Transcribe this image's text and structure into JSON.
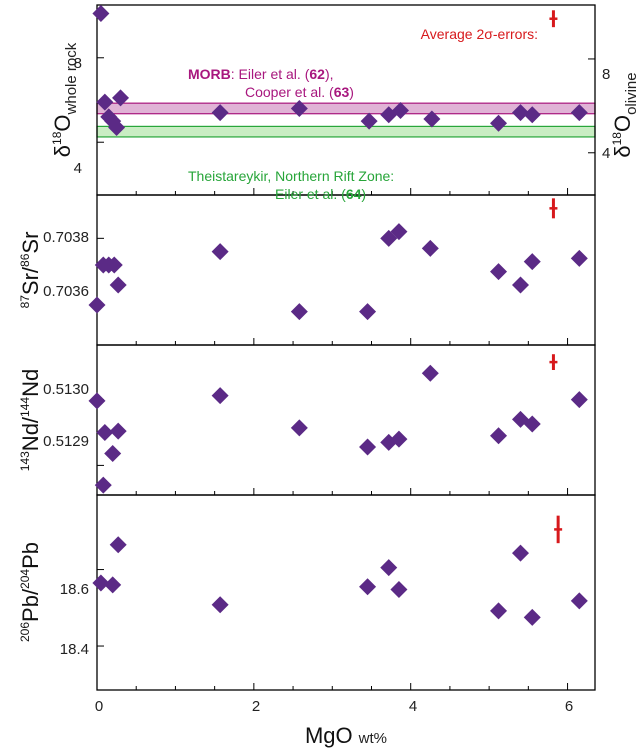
{
  "colors": {
    "marker": "#5b2a86",
    "error_bar": "#d7191c",
    "morb": "#a8177e",
    "morb_band": "#e0b3d6",
    "theist": "#27a539",
    "theist_band": "#c9edc3"
  },
  "x_axis": {
    "label_main": "MgO",
    "label_unit": "wt%",
    "ticks": [
      "0",
      "2",
      "4",
      "6"
    ]
  },
  "error_label": "Average 2σ-errors:",
  "morb_annotation": {
    "bold": "MORB",
    "line1_rest": ": Eiler et al. (",
    "ref1": "62",
    "line1_end": "),",
    "line2_start": "Cooper et al. (",
    "ref2": "63",
    "line2_end": ")"
  },
  "theist_annotation": {
    "line1": "Theistareykir, Northern Rift Zone:",
    "line2_start": "Eiler et al. (",
    "ref": "64",
    "line2_end": ")"
  },
  "chart_data": [
    {
      "type": "scatter",
      "ylabel_left": "δ18O whole rock",
      "ylabel_right": "δ18O olivine",
      "left_ticks": [
        "4",
        "8"
      ],
      "right_ticks": [
        "4",
        "8"
      ],
      "xlim": [
        0,
        6.35
      ],
      "ylim": [
        1.5,
        10.5
      ],
      "right_ylim": [
        2.2,
        10.3
      ],
      "bands": [
        {
          "name": "MORB",
          "y_low": 5.35,
          "y_high": 5.85
        },
        {
          "name": "Theistareykir",
          "y_low": 4.25,
          "y_high": 4.75
        }
      ],
      "points": [
        {
          "x": 0.05,
          "y": 10.1
        },
        {
          "x": 0.1,
          "y": 5.9
        },
        {
          "x": 0.15,
          "y": 5.2
        },
        {
          "x": 0.2,
          "y": 5.0
        },
        {
          "x": 0.25,
          "y": 4.7
        },
        {
          "x": 0.3,
          "y": 6.1
        },
        {
          "x": 1.57,
          "y": 5.4
        },
        {
          "x": 2.58,
          "y": 5.6
        },
        {
          "x": 3.47,
          "y": 5.0
        },
        {
          "x": 3.72,
          "y": 5.3
        },
        {
          "x": 3.87,
          "y": 5.5
        },
        {
          "x": 4.27,
          "y": 5.1
        },
        {
          "x": 5.12,
          "y": 4.9
        },
        {
          "x": 5.4,
          "y": 5.4
        },
        {
          "x": 5.55,
          "y": 5.3
        },
        {
          "x": 6.15,
          "y": 5.4
        }
      ],
      "error": {
        "x": 5.82,
        "y": 9.85,
        "half": 0.4
      }
    },
    {
      "type": "scatter",
      "ylabel": "87Sr/86Sr",
      "ticks": [
        "0.7036",
        "0.7038"
      ],
      "xlim": [
        0,
        6.35
      ],
      "ylim": [
        0.70348,
        0.70393
      ],
      "points": [
        {
          "x": 0.0,
          "y": 0.7036
        },
        {
          "x": 0.08,
          "y": 0.70372
        },
        {
          "x": 0.15,
          "y": 0.70372
        },
        {
          "x": 0.22,
          "y": 0.70372
        },
        {
          "x": 0.27,
          "y": 0.70366
        },
        {
          "x": 1.57,
          "y": 0.70376
        },
        {
          "x": 2.58,
          "y": 0.70358
        },
        {
          "x": 3.45,
          "y": 0.70358
        },
        {
          "x": 3.72,
          "y": 0.7038
        },
        {
          "x": 3.85,
          "y": 0.70382
        },
        {
          "x": 4.25,
          "y": 0.70377
        },
        {
          "x": 5.12,
          "y": 0.7037
        },
        {
          "x": 5.4,
          "y": 0.70366
        },
        {
          "x": 5.55,
          "y": 0.70373
        },
        {
          "x": 6.15,
          "y": 0.70374
        }
      ],
      "error": {
        "x": 5.82,
        "y": 0.70389,
        "half": 3e-05
      }
    },
    {
      "type": "scatter",
      "ylabel": "143Nd/144Nd",
      "ticks": [
        "0.5129",
        "0.5130"
      ],
      "xlim": [
        0,
        6.35
      ],
      "ylim": [
        0.512855,
        0.513083
      ],
      "points": [
        {
          "x": 0.0,
          "y": 0.512998
        },
        {
          "x": 0.08,
          "y": 0.51287
        },
        {
          "x": 0.1,
          "y": 0.51295
        },
        {
          "x": 0.2,
          "y": 0.512918
        },
        {
          "x": 0.27,
          "y": 0.512952
        },
        {
          "x": 1.57,
          "y": 0.513006
        },
        {
          "x": 2.58,
          "y": 0.512957
        },
        {
          "x": 3.45,
          "y": 0.512928
        },
        {
          "x": 3.72,
          "y": 0.512935
        },
        {
          "x": 3.85,
          "y": 0.51294
        },
        {
          "x": 4.25,
          "y": 0.51304
        },
        {
          "x": 5.12,
          "y": 0.512945
        },
        {
          "x": 5.4,
          "y": 0.51297
        },
        {
          "x": 5.55,
          "y": 0.512963
        },
        {
          "x": 6.15,
          "y": 0.513
        }
      ],
      "error": {
        "x": 5.82,
        "y": 0.513057,
        "half": 1.2e-05
      }
    },
    {
      "type": "scatter",
      "ylabel": "206Pb/204Pb",
      "ticks": [
        "18.4",
        "18.6"
      ],
      "xlim": [
        0,
        6.35
      ],
      "ylim": [
        18.285,
        18.795
      ],
      "points": [
        {
          "x": 0.05,
          "y": 18.565
        },
        {
          "x": 0.2,
          "y": 18.56
        },
        {
          "x": 0.27,
          "y": 18.665
        },
        {
          "x": 1.57,
          "y": 18.508
        },
        {
          "x": 3.45,
          "y": 18.555
        },
        {
          "x": 3.72,
          "y": 18.605
        },
        {
          "x": 3.85,
          "y": 18.548
        },
        {
          "x": 5.12,
          "y": 18.492
        },
        {
          "x": 5.4,
          "y": 18.643
        },
        {
          "x": 5.55,
          "y": 18.475
        },
        {
          "x": 6.15,
          "y": 18.518
        }
      ],
      "error": {
        "x": 5.88,
        "y": 18.705,
        "half": 0.036
      }
    }
  ]
}
